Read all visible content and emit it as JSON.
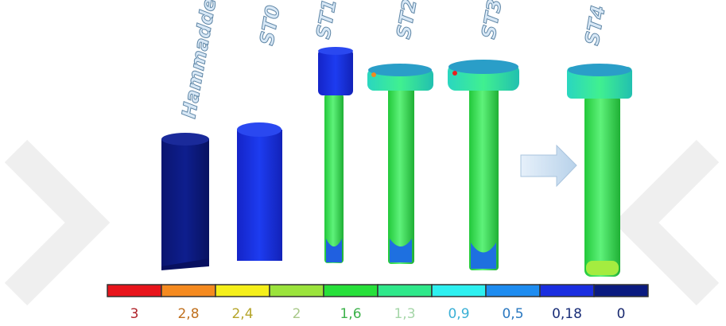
{
  "stages": [
    "Hammadde",
    "ST0",
    "ST1",
    "ST2",
    "ST3",
    "ST4"
  ],
  "legend": [
    {
      "label": "3",
      "color": "#e8141b",
      "text_color": "#b0232a"
    },
    {
      "label": "2,8",
      "color": "#f58a1f",
      "text_color": "#c0701e"
    },
    {
      "label": "2,4",
      "color": "#f5ef1a",
      "text_color": "#b5a52a"
    },
    {
      "label": "2",
      "color": "#9be33c",
      "text_color": "#a9c98a"
    },
    {
      "label": "1,6",
      "color": "#27e03a",
      "text_color": "#3cb24a"
    },
    {
      "label": "1,3",
      "color": "#2fe88a",
      "text_color": "#a5d6a8"
    },
    {
      "label": "0,9",
      "color": "#2ef0f0",
      "text_color": "#3ab0d6"
    },
    {
      "label": "0,5",
      "color": "#1e8cf0",
      "text_color": "#2a78c0"
    },
    {
      "label": "0,18",
      "color": "#1a2ee0",
      "text_color": "#1a2e78"
    },
    {
      "label": "0",
      "color": "#0a1a80",
      "text_color": "#1a2a70"
    }
  ]
}
